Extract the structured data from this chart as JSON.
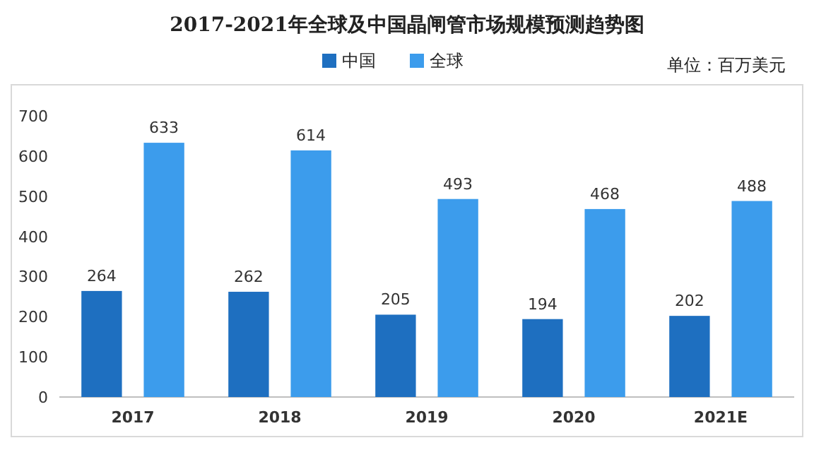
{
  "chart_data": {
    "type": "bar",
    "title": "2017-2021年全球及中国晶闸管市场规模预测趋势图",
    "annotations": [
      "单位：百万美元"
    ],
    "categories": [
      "2017",
      "2018",
      "2019",
      "2020",
      "2021E"
    ],
    "series": [
      {
        "name": "中国",
        "color": "#1e6fc0",
        "values": [
          264,
          262,
          205,
          194,
          202
        ]
      },
      {
        "name": "全球",
        "color": "#3c9cec",
        "values": [
          633,
          614,
          493,
          468,
          488
        ]
      }
    ],
    "ylim": [
      0,
      700
    ],
    "yticks": [
      0,
      100,
      200,
      300,
      400,
      500,
      600,
      700
    ],
    "data_labels": true,
    "legend": "top",
    "grid": false
  }
}
